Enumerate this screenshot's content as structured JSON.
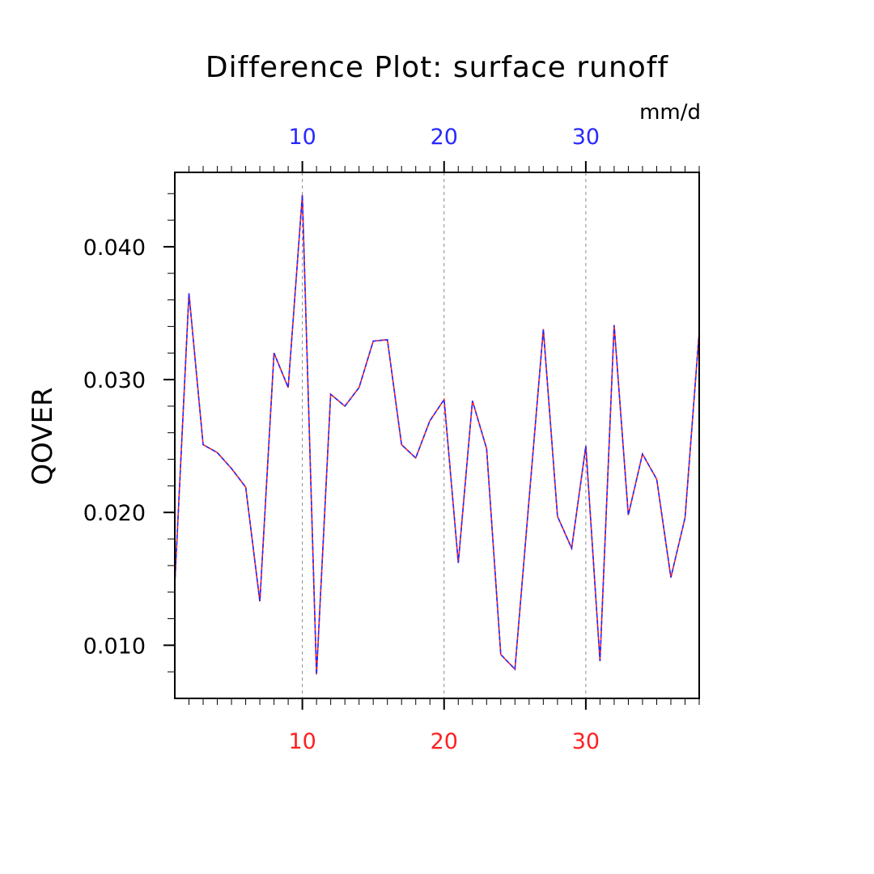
{
  "chart_data": {
    "type": "line",
    "title": "Difference Plot: surface runoff",
    "units": "mm/d",
    "ylabel": "QOVER",
    "xlabel": "",
    "xlim": [
      1,
      38
    ],
    "ylim": [
      0.006,
      0.0456
    ],
    "y_ticks": [
      "0.010",
      "0.020",
      "0.030",
      "0.040"
    ],
    "x_ticks": [
      "10",
      "20",
      "30"
    ],
    "grid": "vertical dashed at x = 10, 20, 30",
    "colors": {
      "bottom_axis": "#ff2020",
      "top_axis": "#2828ff",
      "frame": "#000000"
    },
    "x": [
      1,
      2,
      3,
      4,
      5,
      6,
      7,
      8,
      9,
      10,
      11,
      12,
      13,
      14,
      15,
      16,
      17,
      18,
      19,
      20,
      21,
      22,
      23,
      24,
      25,
      26,
      27,
      28,
      29,
      30,
      31,
      32,
      33,
      34,
      35,
      36,
      37,
      38
    ],
    "series": [
      {
        "color": "#ff2020",
        "style": "solid",
        "values": [
          0.0146,
          0.0365,
          0.0251,
          0.0245,
          0.0233,
          0.0219,
          0.0133,
          0.032,
          0.0294,
          0.0439,
          0.0078,
          0.0289,
          0.028,
          0.0294,
          0.0329,
          0.033,
          0.0251,
          0.0241,
          0.0269,
          0.0285,
          0.0162,
          0.0284,
          0.0248,
          0.0093,
          0.0082,
          0.021,
          0.0338,
          0.0197,
          0.0173,
          0.025,
          0.0088,
          0.0341,
          0.0198,
          0.0244,
          0.0225,
          0.0151,
          0.0196,
          0.0336
        ]
      },
      {
        "color": "#2828ff",
        "style": "dashed",
        "values": [
          0.0146,
          0.0365,
          0.0251,
          0.0245,
          0.0233,
          0.0219,
          0.0133,
          0.032,
          0.0294,
          0.0439,
          0.0078,
          0.0289,
          0.028,
          0.0294,
          0.0329,
          0.033,
          0.0251,
          0.0241,
          0.0269,
          0.0285,
          0.0162,
          0.0284,
          0.0248,
          0.0093,
          0.0082,
          0.021,
          0.0338,
          0.0197,
          0.0173,
          0.025,
          0.0088,
          0.0341,
          0.0198,
          0.0244,
          0.0225,
          0.0151,
          0.0196,
          0.0336
        ]
      }
    ]
  }
}
